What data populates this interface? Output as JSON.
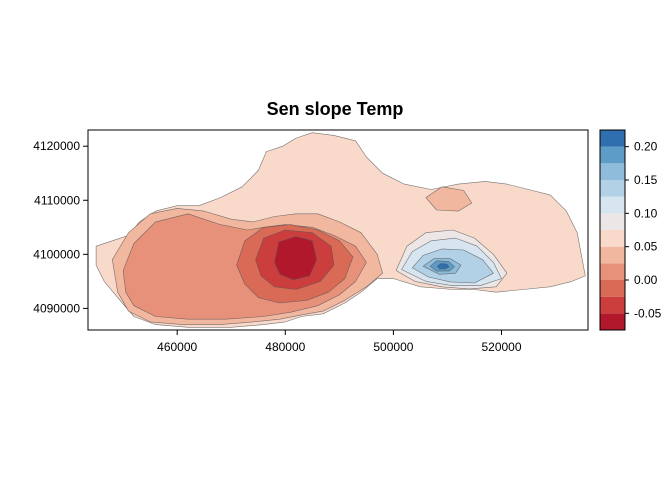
{
  "chart_data": {
    "type": "heatmap",
    "title": "Sen slope Temp",
    "xlabel": "",
    "ylabel": "",
    "xlim": [
      443500,
      536000
    ],
    "ylim": [
      4086000,
      4123000
    ],
    "x_ticks": [
      460000,
      480000,
      500000,
      520000
    ],
    "x_tick_labels": [
      "460000",
      "480000",
      "500000",
      "520000"
    ],
    "y_ticks": [
      4090000,
      4100000,
      4110000,
      4120000
    ],
    "y_tick_labels": [
      "4090000",
      "4100000",
      "4110000",
      "4120000"
    ],
    "grid": false,
    "legend": {
      "position": "right",
      "type": "colorbar",
      "range": [
        -0.075,
        0.225
      ],
      "breaks": [
        -0.075,
        -0.05,
        -0.025,
        0.0,
        0.025,
        0.05,
        0.075,
        0.1,
        0.125,
        0.15,
        0.175,
        0.2,
        0.225
      ],
      "colors": [
        "#b2182b",
        "#cc3e3e",
        "#d96a56",
        "#e8917a",
        "#f2b79f",
        "#f8d9ca",
        "#ece7e6",
        "#d6e5f0",
        "#b3d1e6",
        "#8fbcdb",
        "#5e9cc8",
        "#2f6faf"
      ],
      "tick_values": [
        -0.05,
        0.0,
        0.05,
        0.1,
        0.15,
        0.2
      ],
      "tick_labels": [
        "-0.05",
        "0.00",
        "0.05",
        "0.10",
        "0.15",
        "0.20"
      ]
    },
    "regions": [
      {
        "level": 0.05,
        "color": "#f8d9ca",
        "points": [
          [
            445000,
            4101500
          ],
          [
            448000,
            4102500
          ],
          [
            451000,
            4103500
          ],
          [
            453000,
            4106000
          ],
          [
            456000,
            4108000
          ],
          [
            460000,
            4109000
          ],
          [
            464000,
            4109000
          ],
          [
            468000,
            4110500
          ],
          [
            472000,
            4112500
          ],
          [
            475000,
            4115500
          ],
          [
            476500,
            4119000
          ],
          [
            479500,
            4120000
          ],
          [
            482000,
            4121500
          ],
          [
            485000,
            4122500
          ],
          [
            489000,
            4122000
          ],
          [
            493000,
            4121000
          ],
          [
            495000,
            4118000
          ],
          [
            498000,
            4115000
          ],
          [
            502000,
            4113000
          ],
          [
            507000,
            4112000
          ],
          [
            512000,
            4113000
          ],
          [
            517000,
            4113500
          ],
          [
            521000,
            4113000
          ],
          [
            525000,
            4112000
          ],
          [
            529000,
            4111000
          ],
          [
            532000,
            4108000
          ],
          [
            534000,
            4104000
          ],
          [
            535500,
            4096000
          ],
          [
            533000,
            4095000
          ],
          [
            529000,
            4094000
          ],
          [
            524000,
            4093500
          ],
          [
            519000,
            4093000
          ],
          [
            515000,
            4093500
          ],
          [
            511000,
            4093500
          ],
          [
            505000,
            4094000
          ],
          [
            500000,
            4095500
          ],
          [
            497000,
            4095500
          ],
          [
            494000,
            4093000
          ],
          [
            491000,
            4091000
          ],
          [
            487000,
            4089000
          ],
          [
            483000,
            4088500
          ],
          [
            480000,
            4087500
          ],
          [
            476000,
            4087000
          ],
          [
            470000,
            4086500
          ],
          [
            462000,
            4086500
          ],
          [
            456000,
            4087000
          ],
          [
            452000,
            4088500
          ],
          [
            449000,
            4092000
          ],
          [
            446500,
            4095000
          ],
          [
            445000,
            4098000
          ]
        ]
      },
      {
        "level": 0.025,
        "color": "#f2b79f",
        "points": [
          [
            448000,
            4099000
          ],
          [
            451000,
            4104000
          ],
          [
            455000,
            4107500
          ],
          [
            460000,
            4108500
          ],
          [
            465000,
            4108000
          ],
          [
            470000,
            4106500
          ],
          [
            474000,
            4106000
          ],
          [
            478000,
            4107000
          ],
          [
            482000,
            4107500
          ],
          [
            486000,
            4107500
          ],
          [
            490000,
            4106000
          ],
          [
            494000,
            4104000
          ],
          [
            497000,
            4100000
          ],
          [
            498000,
            4096500
          ],
          [
            495000,
            4094000
          ],
          [
            491000,
            4091500
          ],
          [
            487000,
            4089500
          ],
          [
            483000,
            4088800
          ],
          [
            479000,
            4088000
          ],
          [
            474000,
            4087500
          ],
          [
            468000,
            4087000
          ],
          [
            461000,
            4087000
          ],
          [
            455000,
            4087500
          ],
          [
            451000,
            4089500
          ],
          [
            449000,
            4093000
          ]
        ]
      },
      {
        "level": 0.025,
        "color": "#f2b79f",
        "points": [
          [
            506000,
            4110500
          ],
          [
            509000,
            4112500
          ],
          [
            513000,
            4111800
          ],
          [
            514500,
            4109500
          ],
          [
            512000,
            4108000
          ],
          [
            508000,
            4108200
          ]
        ]
      },
      {
        "level": 0.0,
        "color": "#e8917a",
        "points": [
          [
            450000,
            4097000
          ],
          [
            452000,
            4102000
          ],
          [
            456000,
            4106000
          ],
          [
            462000,
            4107500
          ],
          [
            468000,
            4105500
          ],
          [
            473000,
            4104500
          ],
          [
            476000,
            4105000
          ],
          [
            480000,
            4105500
          ],
          [
            485000,
            4105000
          ],
          [
            489000,
            4103500
          ],
          [
            493000,
            4101500
          ],
          [
            495000,
            4098500
          ],
          [
            493000,
            4095000
          ],
          [
            490000,
            4092500
          ],
          [
            486000,
            4090500
          ],
          [
            481000,
            4089300
          ],
          [
            476000,
            4088500
          ],
          [
            469000,
            4088000
          ],
          [
            462000,
            4088000
          ],
          [
            456000,
            4088500
          ],
          [
            452000,
            4090500
          ],
          [
            450500,
            4093000
          ]
        ]
      },
      {
        "level": -0.025,
        "color": "#d96a56",
        "points": [
          [
            471000,
            4098000
          ],
          [
            472500,
            4102500
          ],
          [
            476000,
            4105000
          ],
          [
            481000,
            4105500
          ],
          [
            486000,
            4104500
          ],
          [
            490000,
            4102500
          ],
          [
            492500,
            4099500
          ],
          [
            491000,
            4095500
          ],
          [
            488000,
            4093000
          ],
          [
            484000,
            4091500
          ],
          [
            479000,
            4091000
          ],
          [
            475000,
            4092000
          ],
          [
            472500,
            4094500
          ]
        ]
      },
      {
        "level": -0.05,
        "color": "#cc3e3e",
        "points": [
          [
            474500,
            4099000
          ],
          [
            476000,
            4103000
          ],
          [
            480000,
            4104500
          ],
          [
            485000,
            4104000
          ],
          [
            488500,
            4101500
          ],
          [
            489000,
            4098000
          ],
          [
            486500,
            4095000
          ],
          [
            482000,
            4093500
          ],
          [
            478000,
            4094000
          ],
          [
            475500,
            4096000
          ]
        ]
      },
      {
        "level": -0.075,
        "color": "#b2182b",
        "points": [
          [
            478000,
            4098500
          ],
          [
            478800,
            4102300
          ],
          [
            482000,
            4103300
          ],
          [
            485000,
            4102500
          ],
          [
            485800,
            4099000
          ],
          [
            484500,
            4096000
          ],
          [
            481500,
            4095300
          ],
          [
            479000,
            4096300
          ]
        ]
      },
      {
        "level": 0.075,
        "color": "#ece7e6",
        "points": [
          [
            500500,
            4097000
          ],
          [
            502500,
            4101500
          ],
          [
            506000,
            4104000
          ],
          [
            511000,
            4104500
          ],
          [
            515000,
            4103000
          ],
          [
            518500,
            4100000
          ],
          [
            521000,
            4096500
          ],
          [
            519000,
            4094000
          ],
          [
            514000,
            4093600
          ],
          [
            509000,
            4094000
          ],
          [
            504000,
            4095000
          ]
        ]
      },
      {
        "level": 0.1,
        "color": "#d6e5f0",
        "points": [
          [
            501500,
            4097200
          ],
          [
            503500,
            4100500
          ],
          [
            507000,
            4102500
          ],
          [
            511500,
            4103000
          ],
          [
            515500,
            4101500
          ],
          [
            518500,
            4098500
          ],
          [
            520000,
            4095500
          ],
          [
            516000,
            4094200
          ],
          [
            511000,
            4094200
          ],
          [
            506000,
            4095000
          ]
        ]
      },
      {
        "level": 0.125,
        "color": "#b3d1e6",
        "points": [
          [
            503500,
            4097500
          ],
          [
            505500,
            4099800
          ],
          [
            509000,
            4101000
          ],
          [
            513000,
            4100800
          ],
          [
            516500,
            4099000
          ],
          [
            518500,
            4096500
          ],
          [
            515000,
            4094700
          ],
          [
            510500,
            4094900
          ],
          [
            506500,
            4095800
          ]
        ]
      },
      {
        "level": 0.15,
        "color": "#8fbcdb",
        "points": [
          [
            505500,
            4097800
          ],
          [
            507500,
            4099200
          ],
          [
            510500,
            4099200
          ],
          [
            512500,
            4098000
          ],
          [
            511500,
            4096500
          ],
          [
            508500,
            4096300
          ]
        ]
      },
      {
        "level": 0.175,
        "color": "#5e9cc8",
        "points": [
          [
            506800,
            4097800
          ],
          [
            508000,
            4098800
          ],
          [
            510200,
            4098700
          ],
          [
            511300,
            4097700
          ],
          [
            510300,
            4096900
          ],
          [
            508000,
            4096900
          ]
        ]
      },
      {
        "level": 0.2,
        "color": "#2f6faf",
        "points": [
          [
            508100,
            4097800
          ],
          [
            508800,
            4098300
          ],
          [
            509900,
            4098200
          ],
          [
            510300,
            4097700
          ],
          [
            509600,
            4097300
          ],
          [
            508600,
            4097300
          ]
        ]
      }
    ]
  }
}
